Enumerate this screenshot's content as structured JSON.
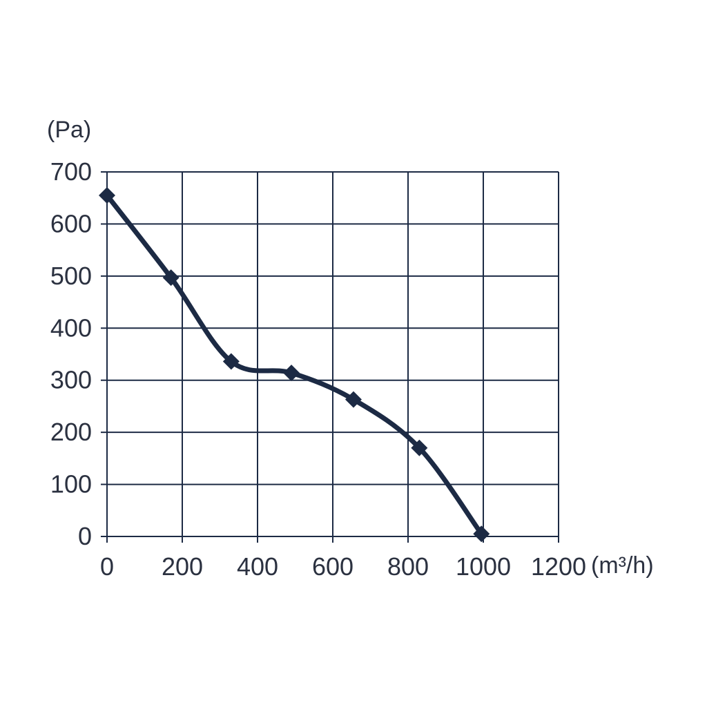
{
  "chart_data": {
    "type": "line",
    "title": "",
    "ylabel": "(Pa)",
    "xlabel": "(m³/h)",
    "xlim": [
      0,
      1200
    ],
    "ylim": [
      0,
      700
    ],
    "x_ticks": [
      "0",
      "200",
      "400",
      "600",
      "800",
      "1000",
      "1200"
    ],
    "y_ticks": [
      "0",
      "100",
      "200",
      "300",
      "400",
      "500",
      "600",
      "700"
    ],
    "grid": true,
    "marker": "diamond",
    "line_color": "#1c2a44",
    "series": [
      {
        "x": [
          0,
          170,
          330,
          490,
          655,
          830,
          995
        ],
        "y": [
          655,
          497,
          336,
          314,
          263,
          170,
          5
        ]
      }
    ]
  }
}
